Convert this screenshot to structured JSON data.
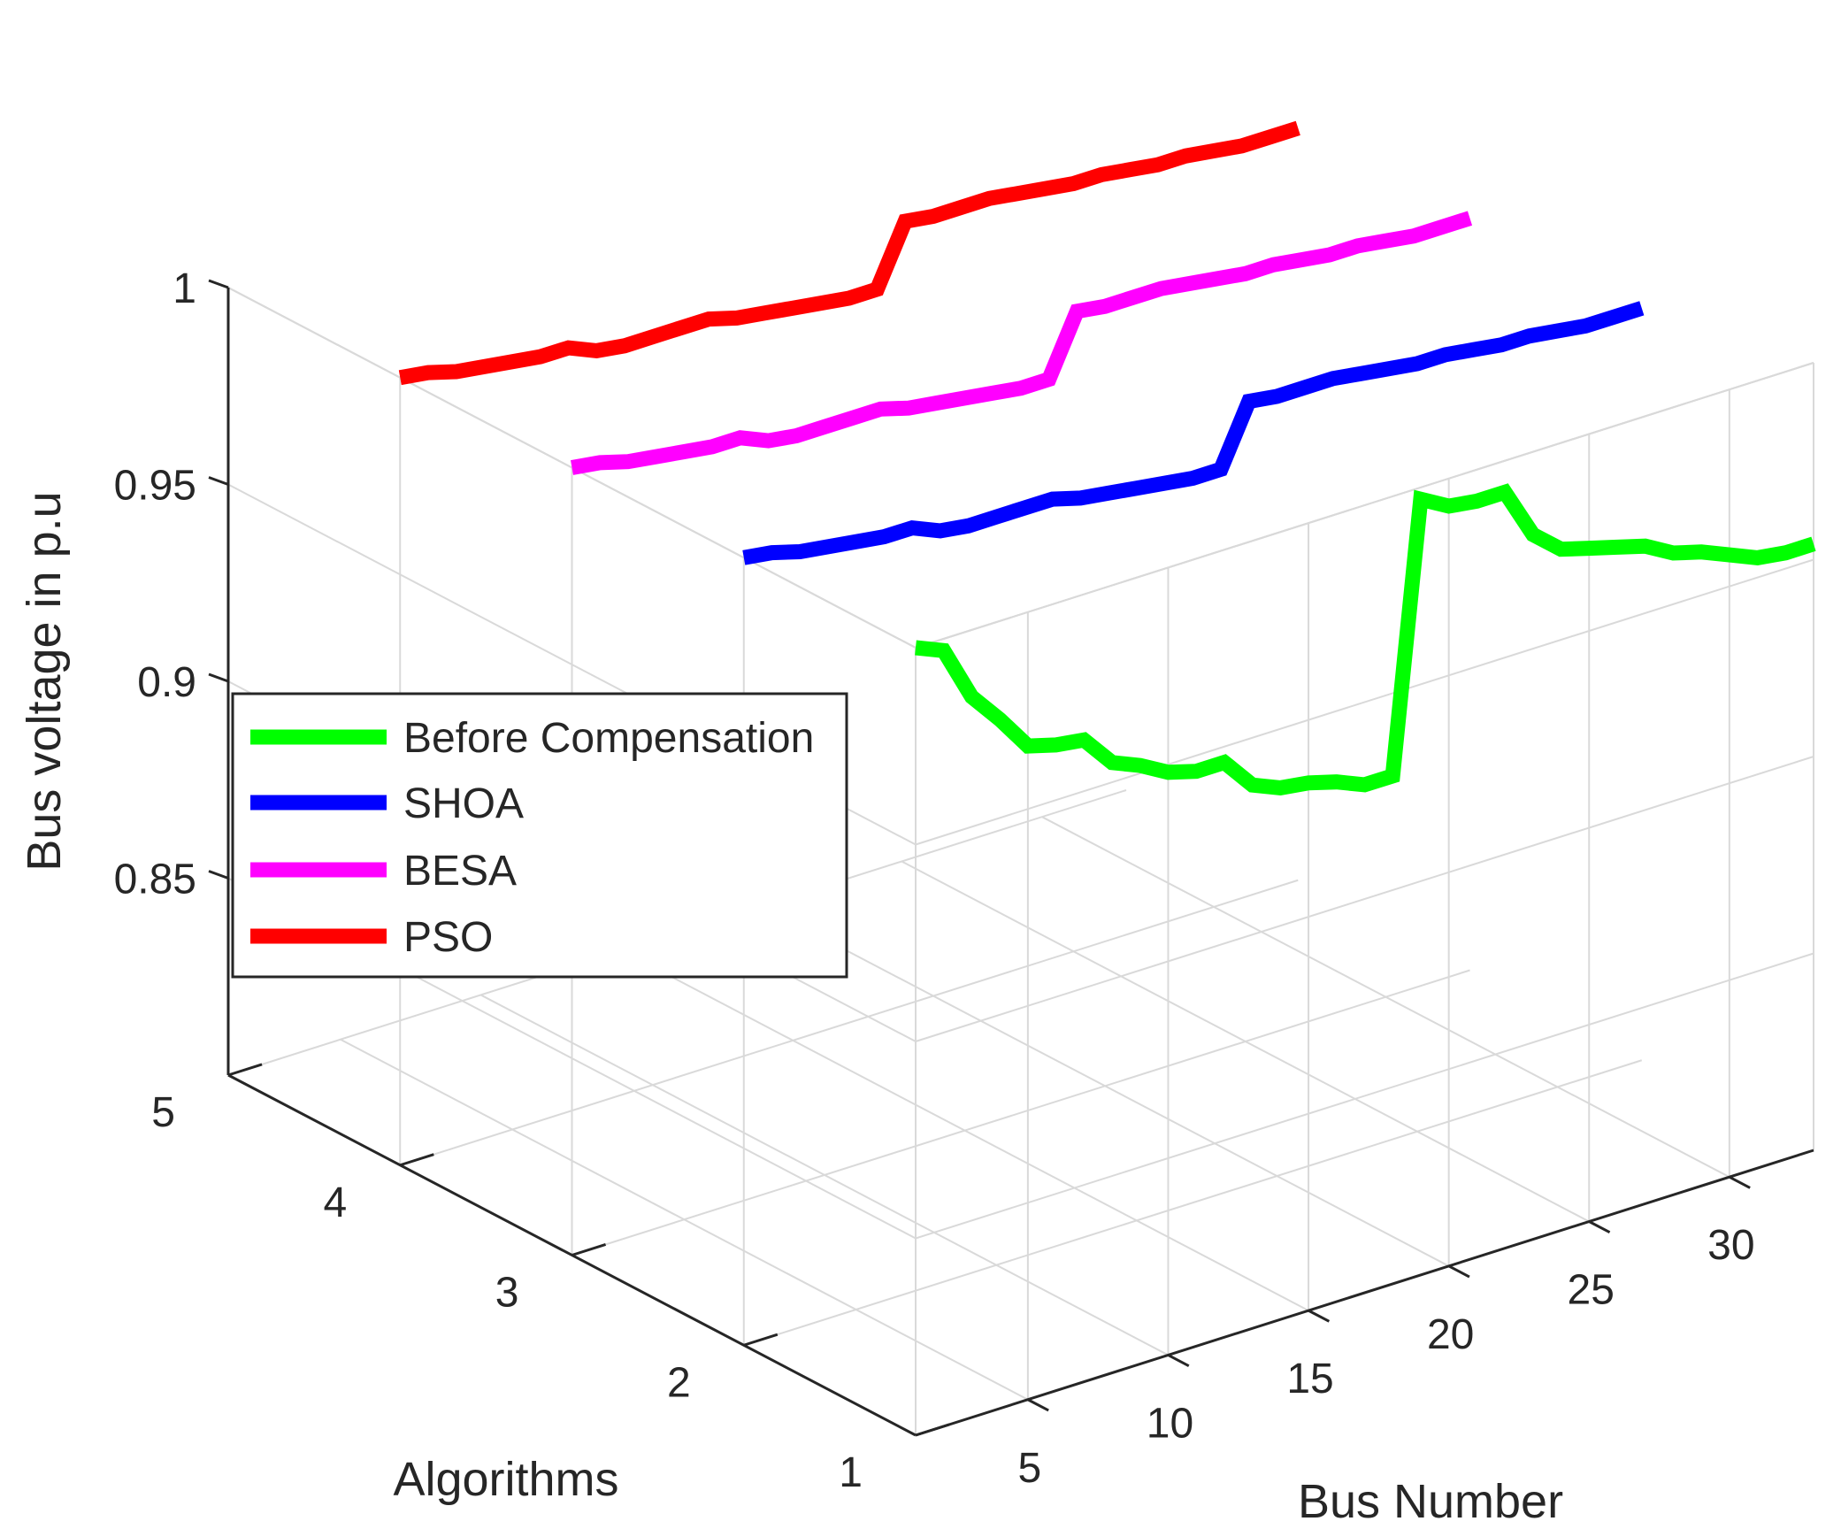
{
  "chart_data": {
    "type": "line3d",
    "xlabel": "Bus Number",
    "ylabel": "Algorithms",
    "zlabel": "Bus voltage in p.u",
    "xlim": [
      1,
      33
    ],
    "ylim": [
      1,
      5
    ],
    "zlim": [
      0.8,
      1.0
    ],
    "x_ticks": [
      5,
      10,
      15,
      20,
      25,
      30
    ],
    "y_ticks": [
      1,
      2,
      3,
      4,
      5
    ],
    "z_ticks": [
      0.85,
      0.9,
      0.95,
      1
    ],
    "x_tick_labels": [
      "5",
      "10",
      "15",
      "20",
      "25",
      "30"
    ],
    "y_tick_labels": [
      "1",
      "2",
      "3",
      "4",
      "5"
    ],
    "z_tick_labels": [
      "0.85",
      "0.9",
      "0.95",
      "1"
    ],
    "grid": true,
    "legend_position": "middle-left",
    "x": [
      1,
      2,
      3,
      4,
      5,
      6,
      7,
      8,
      9,
      10,
      11,
      12,
      13,
      14,
      15,
      16,
      17,
      18,
      19,
      20,
      21,
      22,
      23,
      24,
      25,
      26,
      27,
      28,
      29,
      30,
      31,
      32,
      33
    ],
    "series": [
      {
        "name": "Before Compensation",
        "color": "#00ff00",
        "algorithm": 1,
        "values": [
          1.0,
          0.997,
          0.983,
          0.975,
          0.966,
          0.964,
          0.963,
          0.955,
          0.952,
          0.948,
          0.946,
          0.946,
          0.938,
          0.935,
          0.934,
          0.932,
          0.929,
          0.929,
          0.997,
          0.993,
          0.992,
          0.992,
          0.979,
          0.973,
          0.971,
          0.969,
          0.967,
          0.963,
          0.961,
          0.958,
          0.955,
          0.954,
          0.954
        ]
      },
      {
        "name": "SHOA",
        "color": "#0000ff",
        "algorithm": 2,
        "values": [
          1.0,
          0.999,
          0.997,
          0.996,
          0.995,
          0.994,
          0.994,
          0.991,
          0.99,
          0.99,
          0.99,
          0.99,
          0.988,
          0.987,
          0.986,
          0.985,
          0.984,
          0.984,
          0.999,
          0.998,
          0.998,
          0.998,
          0.997,
          0.996,
          0.995,
          0.995,
          0.994,
          0.993,
          0.993,
          0.992,
          0.991,
          0.991,
          0.991
        ]
      },
      {
        "name": "BESA",
        "color": "#ff00ff",
        "algorithm": 3,
        "values": [
          1.0,
          0.999,
          0.997,
          0.996,
          0.995,
          0.994,
          0.994,
          0.991,
          0.99,
          0.99,
          0.99,
          0.99,
          0.988,
          0.987,
          0.986,
          0.985,
          0.984,
          0.984,
          0.999,
          0.998,
          0.998,
          0.998,
          0.997,
          0.996,
          0.995,
          0.995,
          0.994,
          0.993,
          0.993,
          0.992,
          0.991,
          0.991,
          0.991
        ]
      },
      {
        "name": "PSO",
        "color": "#ff0000",
        "algorithm": 4,
        "values": [
          1.0,
          0.999,
          0.997,
          0.996,
          0.995,
          0.994,
          0.994,
          0.991,
          0.99,
          0.99,
          0.99,
          0.99,
          0.988,
          0.987,
          0.986,
          0.985,
          0.984,
          0.984,
          0.999,
          0.998,
          0.998,
          0.998,
          0.997,
          0.996,
          0.995,
          0.995,
          0.994,
          0.993,
          0.993,
          0.992,
          0.991,
          0.991,
          0.991
        ]
      }
    ]
  }
}
